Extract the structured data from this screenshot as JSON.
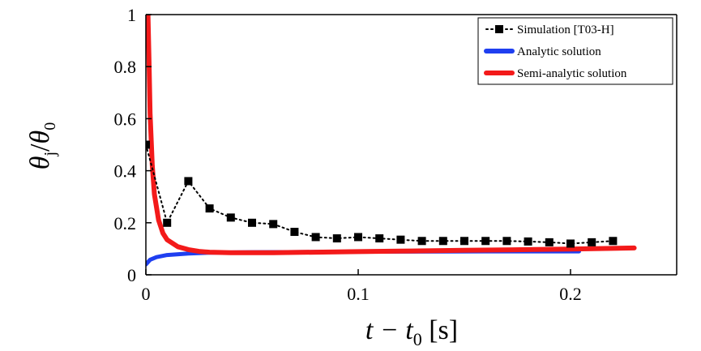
{
  "chart_data": {
    "type": "line",
    "xlabel": {
      "main": "t − t",
      "sub": "0",
      "unit": " [s]"
    },
    "ylabel": {
      "num": "θ",
      "num_sub": "j",
      "slash": "/",
      "den": "θ",
      "den_sub": "0"
    },
    "xlim": [
      0,
      0.25
    ],
    "ylim": [
      0,
      1
    ],
    "x_ticks": [
      0,
      0.1,
      0.2
    ],
    "x_tick_labels": [
      "0",
      "0.1",
      "0.2"
    ],
    "y_ticks": [
      0,
      0.2,
      0.4,
      0.6,
      0.8,
      1
    ],
    "y_tick_labels": [
      "0",
      "0.2",
      "0.4",
      "0.6",
      "0.8",
      "1"
    ],
    "grid": false,
    "legend_position": "top-right",
    "series": [
      {
        "name": "Simulation [T03-H]",
        "style": "dotted-markers",
        "color": "#000000",
        "x": [
          0,
          0.01,
          0.02,
          0.03,
          0.04,
          0.05,
          0.06,
          0.07,
          0.08,
          0.09,
          0.1,
          0.11,
          0.12,
          0.13,
          0.14,
          0.15,
          0.16,
          0.17,
          0.18,
          0.19,
          0.2,
          0.21,
          0.22
        ],
        "y": [
          0.5,
          0.2,
          0.36,
          0.255,
          0.22,
          0.2,
          0.195,
          0.165,
          0.145,
          0.14,
          0.145,
          0.14,
          0.135,
          0.13,
          0.13,
          0.13,
          0.13,
          0.13,
          0.128,
          0.125,
          0.12,
          0.125,
          0.13
        ]
      },
      {
        "name": "Analytic solution",
        "style": "solid",
        "color": "#1f3ff0",
        "x": [
          0,
          0.002,
          0.005,
          0.01,
          0.02,
          0.03,
          0.05,
          0.08,
          0.12,
          0.16,
          0.204
        ],
        "y": [
          0.04,
          0.058,
          0.068,
          0.076,
          0.082,
          0.085,
          0.087,
          0.088,
          0.089,
          0.09,
          0.09
        ]
      },
      {
        "name": "Semi-analytic solution",
        "style": "solid",
        "color": "#f31a1a",
        "x": [
          0.001,
          0.0015,
          0.002,
          0.003,
          0.004,
          0.006,
          0.008,
          0.01,
          0.015,
          0.02,
          0.025,
          0.03,
          0.04,
          0.06,
          0.08,
          0.1,
          0.12,
          0.15,
          0.18,
          0.2,
          0.23
        ],
        "y": [
          1.0,
          0.82,
          0.62,
          0.42,
          0.31,
          0.21,
          0.16,
          0.135,
          0.108,
          0.097,
          0.09,
          0.087,
          0.085,
          0.085,
          0.087,
          0.089,
          0.091,
          0.094,
          0.097,
          0.099,
          0.103
        ]
      }
    ]
  }
}
